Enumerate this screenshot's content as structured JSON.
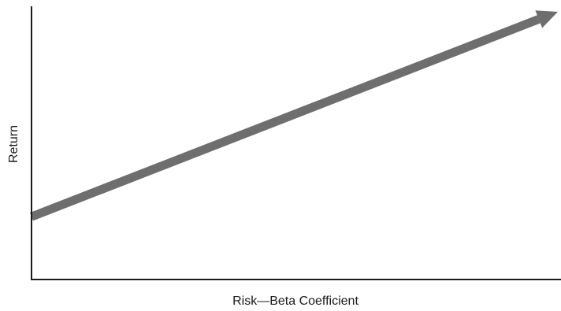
{
  "chart_data": {
    "type": "line",
    "title": "",
    "xlabel": "Risk—Beta Coefficient",
    "ylabel": "Return",
    "xlim": [
      0,
      1
    ],
    "ylim": [
      0,
      1
    ],
    "grid": false,
    "legend": "none",
    "series": [
      {
        "x": [
          0,
          1
        ],
        "y": [
          0.23,
          0.98
        ],
        "color": "#6e6e6e",
        "arrow_end": true
      }
    ]
  }
}
